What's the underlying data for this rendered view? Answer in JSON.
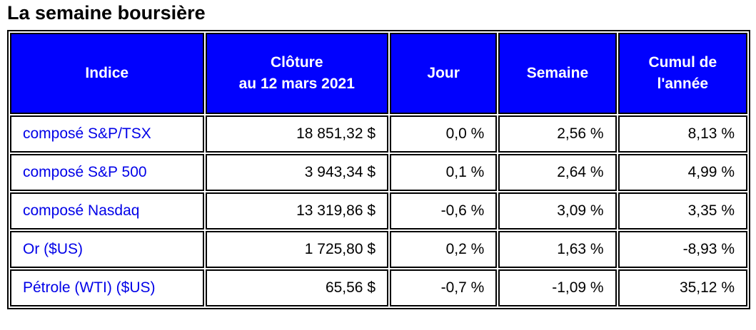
{
  "page": {
    "title": "La semaine boursière"
  },
  "colors": {
    "header_background": "#0101fe",
    "header_text": "#ffffff",
    "index_text": "#0101e8",
    "value_text": "#000000",
    "border": "#000000"
  },
  "table": {
    "columns": [
      {
        "label": "Indice"
      },
      {
        "label": "Clôture\nau 12 mars 2021"
      },
      {
        "label": "Jour"
      },
      {
        "label": "Semaine"
      },
      {
        "label": "Cumul de\nl'année"
      }
    ],
    "rows": [
      {
        "indice": "composé S&P/TSX",
        "cloture": "18 851,32 $",
        "jour": "0,0 %",
        "semaine": "2,56 %",
        "cumul": "8,13 %"
      },
      {
        "indice": "composé S&P 500",
        "cloture": "3 943,34 $",
        "jour": "0,1 %",
        "semaine": "2,64 %",
        "cumul": "4,99 %"
      },
      {
        "indice": "composé Nasdaq",
        "cloture": "13 319,86 $",
        "jour": "-0,6 %",
        "semaine": "3,09 %",
        "cumul": "3,35 %"
      },
      {
        "indice": "Or ($US)",
        "cloture": "1 725,80 $",
        "jour": "0,2 %",
        "semaine": "1,63 %",
        "cumul": "-8,93 %"
      },
      {
        "indice": "Pétrole (WTI) ($US)",
        "cloture": "65,56 $",
        "jour": "-0,7 %",
        "semaine": "-1,09 %",
        "cumul": "35,12 %"
      }
    ]
  }
}
